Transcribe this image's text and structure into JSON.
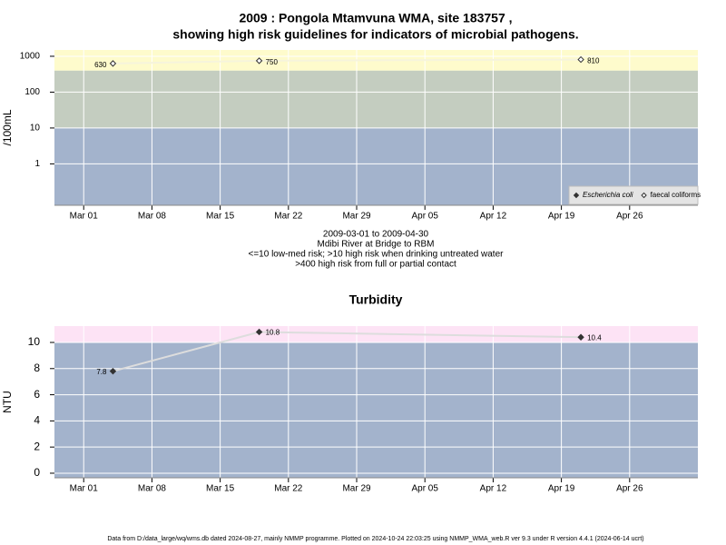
{
  "chart_data": [
    {
      "type": "line",
      "title": "2009 : Pongola Mtamvuna WMA, site 183757 ,",
      "subtitle": "showing high risk guidelines for indicators of microbial pathogens.",
      "notes": [
        "2009-03-01 to 2009-04-30",
        "Mdibi River at Bridge to RBM",
        "<=10 low-med risk; >10 high risk when drinking untreated water",
        ">400 high risk from full or partial contact"
      ],
      "ylabel": "/100mL",
      "log_scale": true,
      "x": [
        "2009-03-04",
        "2009-03-19",
        "2009-04-21"
      ],
      "series": [
        {
          "name": "Escherichia coli",
          "color": "#333333",
          "marker": "filled-diamond",
          "values": [
            null,
            null,
            null
          ]
        },
        {
          "name": "faecal coliforms",
          "color": "#333333",
          "marker": "open-diamond",
          "values": [
            630,
            750,
            810
          ]
        }
      ],
      "bands": [
        {
          "from": 0.07,
          "to": 10,
          "color": "#a3b3cc"
        },
        {
          "from": 10,
          "to": 400,
          "color": "#c4cdc0"
        },
        {
          "from": 400,
          "to": 1500,
          "color": "#fefbcc"
        }
      ],
      "xlim": [
        "2009-02-26",
        "2009-05-03"
      ],
      "xticks": [
        {
          "value": "2009-03-01",
          "label": "Mar 01"
        },
        {
          "value": "2009-03-08",
          "label": "Mar 08"
        },
        {
          "value": "2009-03-15",
          "label": "Mar 15"
        },
        {
          "value": "2009-03-22",
          "label": "Mar 22"
        },
        {
          "value": "2009-03-29",
          "label": "Mar 29"
        },
        {
          "value": "2009-04-05",
          "label": "Apr 05"
        },
        {
          "value": "2009-04-12",
          "label": "Apr 12"
        },
        {
          "value": "2009-04-19",
          "label": "Apr 19"
        },
        {
          "value": "2009-04-26",
          "label": "Apr 26"
        }
      ],
      "ylim": [
        0.07,
        1500
      ],
      "yticks": [
        1,
        10,
        100,
        1000
      ],
      "grid": true,
      "legend": "bottom-right"
    },
    {
      "type": "line",
      "title": "Turbidity",
      "ylabel": "NTU",
      "x": [
        "2009-03-04",
        "2009-03-19",
        "2009-04-21"
      ],
      "values": [
        7.8,
        10.8,
        10.4
      ],
      "color": "#333333",
      "bands": [
        {
          "from": -0.35,
          "to": 10,
          "color": "#a3b3cc"
        },
        {
          "from": 10,
          "to": 11.25,
          "color": "#fde3f5"
        }
      ],
      "xlim": [
        "2009-02-26",
        "2009-05-03"
      ],
      "xticks": [
        {
          "value": "2009-03-01",
          "label": "Mar 01"
        },
        {
          "value": "2009-03-08",
          "label": "Mar 08"
        },
        {
          "value": "2009-03-15",
          "label": "Mar 15"
        },
        {
          "value": "2009-03-22",
          "label": "Mar 22"
        },
        {
          "value": "2009-03-29",
          "label": "Mar 29"
        },
        {
          "value": "2009-04-05",
          "label": "Apr 05"
        },
        {
          "value": "2009-04-12",
          "label": "Apr 12"
        },
        {
          "value": "2009-04-19",
          "label": "Apr 19"
        },
        {
          "value": "2009-04-26",
          "label": "Apr 26"
        }
      ],
      "ylim": [
        -0.35,
        11.25
      ],
      "yticks": [
        0,
        2,
        4,
        6,
        8,
        10
      ],
      "grid": true
    }
  ],
  "footer": "Data from D:/data_large/wq/wms.db dated 2024-08-27, mainly NMMP programme. Plotted on 2024-10-24 22:03:25 using NMMP_WMA_web.R ver 9.3 under R version 4.4.1 (2024-06-14 ucrt)"
}
